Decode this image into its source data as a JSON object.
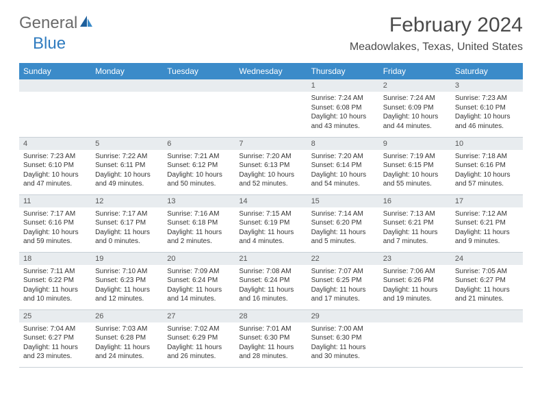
{
  "logo": {
    "word1": "General",
    "word2": "Blue"
  },
  "title": "February 2024",
  "location": "Meadowlakes, Texas, United States",
  "colors": {
    "header_bg": "#3b8bc9",
    "header_text": "#ffffff",
    "daynum_bg": "#e8ecef",
    "border": "#c8d0d6",
    "logo_gray": "#6a6a6a",
    "logo_blue": "#2f7bbf"
  },
  "weekdays": [
    "Sunday",
    "Monday",
    "Tuesday",
    "Wednesday",
    "Thursday",
    "Friday",
    "Saturday"
  ],
  "first_weekday_index": 4,
  "days": [
    {
      "n": 1,
      "sunrise": "7:24 AM",
      "sunset": "6:08 PM",
      "dl": "10 hours and 43 minutes."
    },
    {
      "n": 2,
      "sunrise": "7:24 AM",
      "sunset": "6:09 PM",
      "dl": "10 hours and 44 minutes."
    },
    {
      "n": 3,
      "sunrise": "7:23 AM",
      "sunset": "6:10 PM",
      "dl": "10 hours and 46 minutes."
    },
    {
      "n": 4,
      "sunrise": "7:23 AM",
      "sunset": "6:10 PM",
      "dl": "10 hours and 47 minutes."
    },
    {
      "n": 5,
      "sunrise": "7:22 AM",
      "sunset": "6:11 PM",
      "dl": "10 hours and 49 minutes."
    },
    {
      "n": 6,
      "sunrise": "7:21 AM",
      "sunset": "6:12 PM",
      "dl": "10 hours and 50 minutes."
    },
    {
      "n": 7,
      "sunrise": "7:20 AM",
      "sunset": "6:13 PM",
      "dl": "10 hours and 52 minutes."
    },
    {
      "n": 8,
      "sunrise": "7:20 AM",
      "sunset": "6:14 PM",
      "dl": "10 hours and 54 minutes."
    },
    {
      "n": 9,
      "sunrise": "7:19 AM",
      "sunset": "6:15 PM",
      "dl": "10 hours and 55 minutes."
    },
    {
      "n": 10,
      "sunrise": "7:18 AM",
      "sunset": "6:16 PM",
      "dl": "10 hours and 57 minutes."
    },
    {
      "n": 11,
      "sunrise": "7:17 AM",
      "sunset": "6:16 PM",
      "dl": "10 hours and 59 minutes."
    },
    {
      "n": 12,
      "sunrise": "7:17 AM",
      "sunset": "6:17 PM",
      "dl": "11 hours and 0 minutes."
    },
    {
      "n": 13,
      "sunrise": "7:16 AM",
      "sunset": "6:18 PM",
      "dl": "11 hours and 2 minutes."
    },
    {
      "n": 14,
      "sunrise": "7:15 AM",
      "sunset": "6:19 PM",
      "dl": "11 hours and 4 minutes."
    },
    {
      "n": 15,
      "sunrise": "7:14 AM",
      "sunset": "6:20 PM",
      "dl": "11 hours and 5 minutes."
    },
    {
      "n": 16,
      "sunrise": "7:13 AM",
      "sunset": "6:21 PM",
      "dl": "11 hours and 7 minutes."
    },
    {
      "n": 17,
      "sunrise": "7:12 AM",
      "sunset": "6:21 PM",
      "dl": "11 hours and 9 minutes."
    },
    {
      "n": 18,
      "sunrise": "7:11 AM",
      "sunset": "6:22 PM",
      "dl": "11 hours and 10 minutes."
    },
    {
      "n": 19,
      "sunrise": "7:10 AM",
      "sunset": "6:23 PM",
      "dl": "11 hours and 12 minutes."
    },
    {
      "n": 20,
      "sunrise": "7:09 AM",
      "sunset": "6:24 PM",
      "dl": "11 hours and 14 minutes."
    },
    {
      "n": 21,
      "sunrise": "7:08 AM",
      "sunset": "6:24 PM",
      "dl": "11 hours and 16 minutes."
    },
    {
      "n": 22,
      "sunrise": "7:07 AM",
      "sunset": "6:25 PM",
      "dl": "11 hours and 17 minutes."
    },
    {
      "n": 23,
      "sunrise": "7:06 AM",
      "sunset": "6:26 PM",
      "dl": "11 hours and 19 minutes."
    },
    {
      "n": 24,
      "sunrise": "7:05 AM",
      "sunset": "6:27 PM",
      "dl": "11 hours and 21 minutes."
    },
    {
      "n": 25,
      "sunrise": "7:04 AM",
      "sunset": "6:27 PM",
      "dl": "11 hours and 23 minutes."
    },
    {
      "n": 26,
      "sunrise": "7:03 AM",
      "sunset": "6:28 PM",
      "dl": "11 hours and 24 minutes."
    },
    {
      "n": 27,
      "sunrise": "7:02 AM",
      "sunset": "6:29 PM",
      "dl": "11 hours and 26 minutes."
    },
    {
      "n": 28,
      "sunrise": "7:01 AM",
      "sunset": "6:30 PM",
      "dl": "11 hours and 28 minutes."
    },
    {
      "n": 29,
      "sunrise": "7:00 AM",
      "sunset": "6:30 PM",
      "dl": "11 hours and 30 minutes."
    }
  ],
  "labels": {
    "sunrise": "Sunrise:",
    "sunset": "Sunset:",
    "daylight": "Daylight:"
  }
}
